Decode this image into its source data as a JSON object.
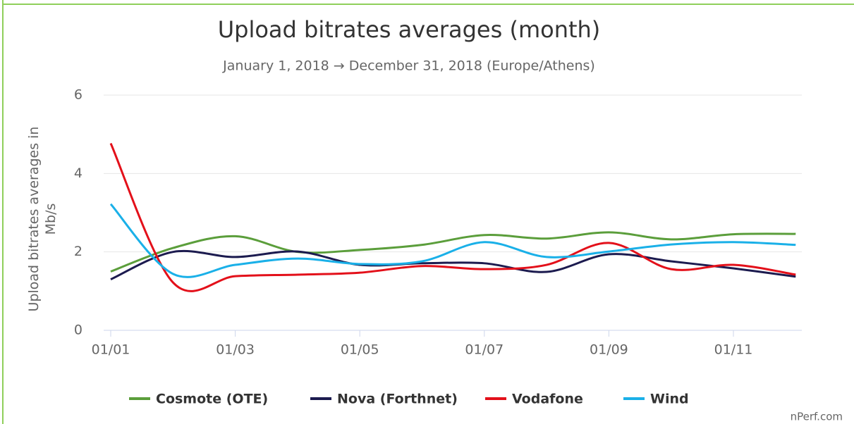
{
  "chart_data": {
    "type": "line",
    "title": "Upload bitrates averages (month)",
    "subtitle": "January 1, 2018 → December 31, 2018 (Europe/Athens)",
    "y_label": "Upload bitrates averages in Mb/s",
    "credit": "nPerf.com",
    "categories": [
      "01/01",
      null,
      "01/03",
      null,
      "01/05",
      null,
      "01/07",
      null,
      "01/09",
      null,
      "01/11",
      null
    ],
    "series": [
      {
        "name": "Cosmote (OTE)",
        "color": "#5b9e3b",
        "values": [
          1.5,
          2.1,
          2.4,
          2.0,
          2.05,
          2.18,
          2.43,
          2.34,
          2.5,
          2.32,
          2.45,
          2.46
        ]
      },
      {
        "name": "Nova (Forthnet)",
        "color": "#1c1b4f",
        "values": [
          1.3,
          2.0,
          1.87,
          2.01,
          1.67,
          1.71,
          1.71,
          1.49,
          1.94,
          1.76,
          1.58,
          1.37
        ]
      },
      {
        "name": "Vodafone",
        "color": "#e3101a",
        "values": [
          4.77,
          1.22,
          1.38,
          1.42,
          1.47,
          1.64,
          1.56,
          1.67,
          2.23,
          1.56,
          1.67,
          1.42
        ]
      },
      {
        "name": "Wind",
        "color": "#1ab0e8",
        "values": [
          3.22,
          1.44,
          1.67,
          1.83,
          1.69,
          1.76,
          2.25,
          1.87,
          2.01,
          2.19,
          2.25,
          2.18
        ]
      }
    ],
    "ylim": [
      0,
      6
    ],
    "yticks": [
      0,
      2,
      4,
      6
    ],
    "grid": true
  }
}
